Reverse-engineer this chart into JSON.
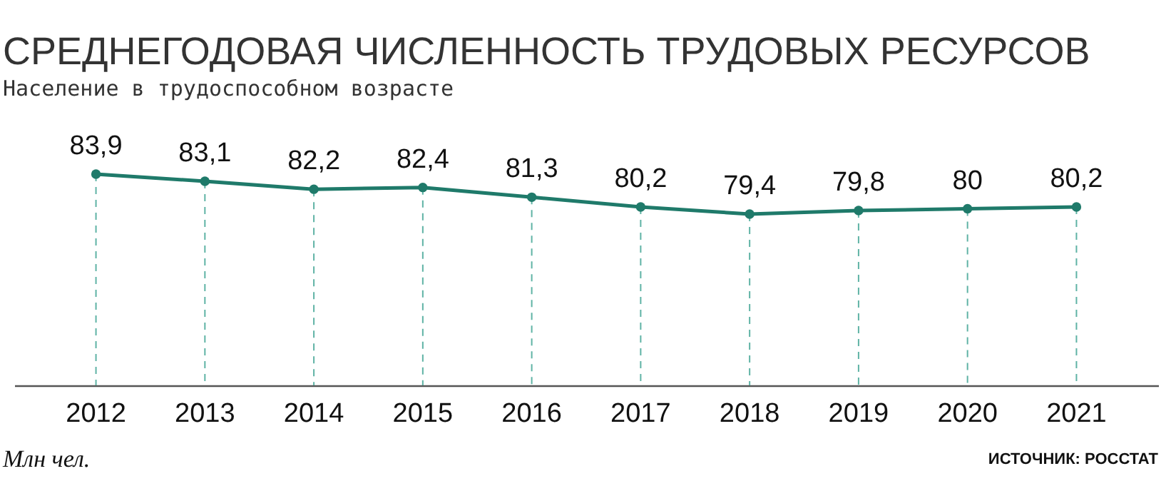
{
  "chart_data": {
    "type": "line",
    "title": "СРЕДНЕГОДОВАЯ ЧИСЛЕННОСТЬ ТРУДОВЫХ РЕСУРСОВ",
    "subtitle": "Население в трудоспособном возрасте",
    "categories": [
      "2012",
      "2013",
      "2014",
      "2015",
      "2016",
      "2017",
      "2018",
      "2019",
      "2020",
      "2021"
    ],
    "values": [
      83.9,
      83.1,
      82.2,
      82.4,
      81.3,
      80.2,
      79.4,
      79.8,
      80,
      80.2
    ],
    "value_labels": [
      "83,9",
      "83,1",
      "82,2",
      "82,4",
      "81,3",
      "80,2",
      "79,4",
      "79,8",
      "80",
      "80,2"
    ],
    "color": "#1f7a6a",
    "marker": "circle",
    "line_style": "solid",
    "grid": "x",
    "tick_labels": "x",
    "annotations": [
      "Млн чел.",
      "ИСТОЧНИК: РОССТАТ"
    ]
  }
}
